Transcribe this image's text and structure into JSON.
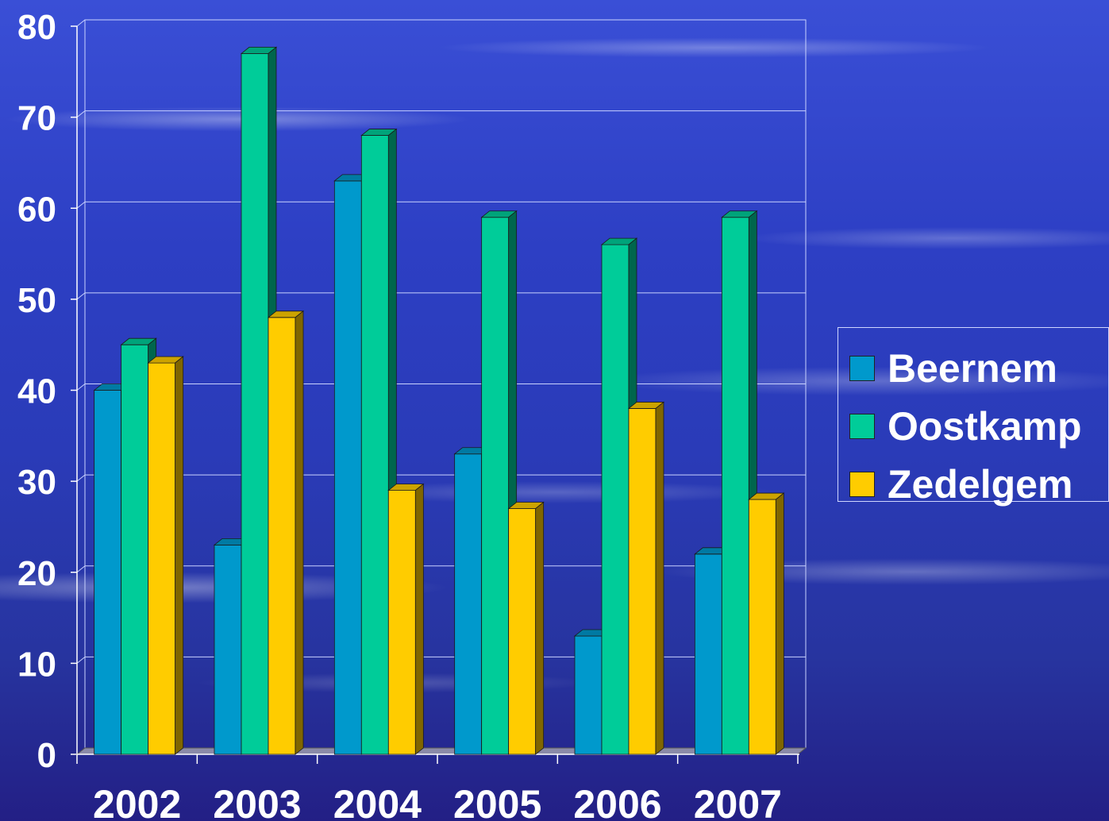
{
  "chart_data": {
    "type": "bar",
    "categories": [
      "2002",
      "2003",
      "2004",
      "2005",
      "2006",
      "2007"
    ],
    "series": [
      {
        "name": "Beernem",
        "values": [
          40,
          23,
          63,
          33,
          13,
          22
        ],
        "color": "#0099cc"
      },
      {
        "name": "Oostkamp",
        "values": [
          45,
          77,
          68,
          59,
          56,
          59
        ],
        "color": "#00cc99"
      },
      {
        "name": "Zedelgem",
        "values": [
          43,
          48,
          29,
          27,
          38,
          28
        ],
        "color": "#ffcc00"
      }
    ],
    "yticks": [
      "0",
      "10",
      "20",
      "30",
      "40",
      "50",
      "60",
      "70",
      "80"
    ],
    "ylim": [
      0,
      80
    ],
    "grid": true,
    "legend_position": "right",
    "title": "",
    "xlabel": "",
    "ylabel": ""
  }
}
